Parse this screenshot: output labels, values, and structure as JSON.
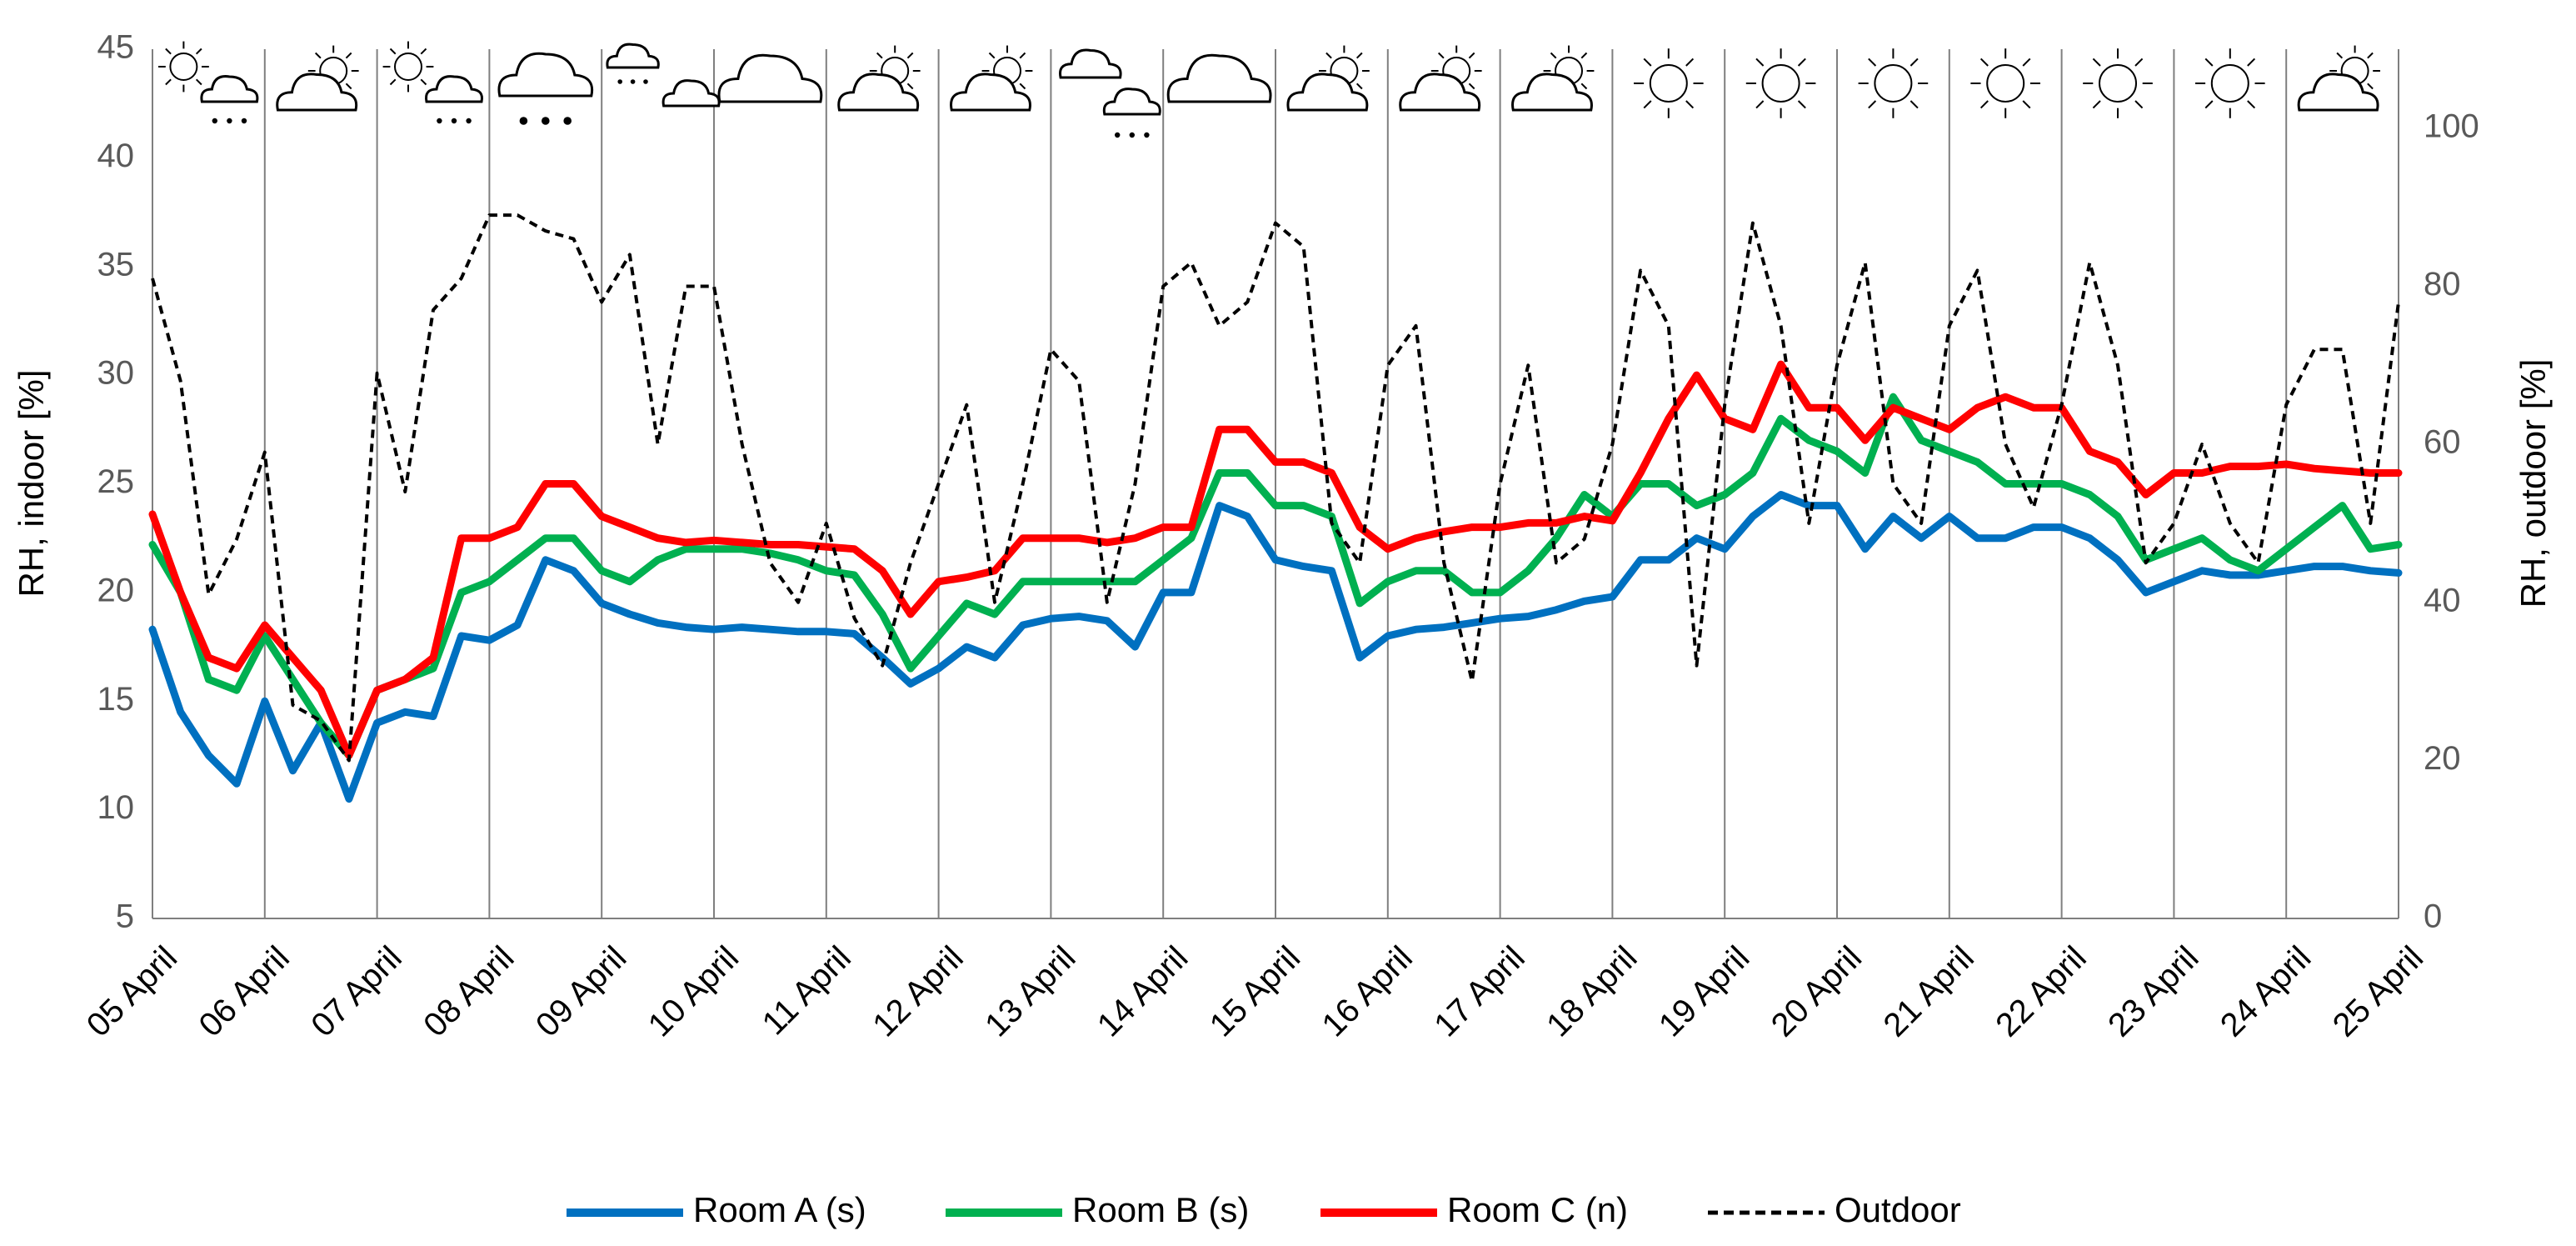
{
  "chart_data": {
    "type": "line",
    "y_label": "RH, indoor [%]",
    "y2_label": "RH, outdoor [%]",
    "categories": [
      "05 April",
      null,
      null,
      null,
      "06 April",
      null,
      null,
      null,
      "07 April",
      null,
      null,
      null,
      "08 April",
      null,
      null,
      null,
      "09 April",
      null,
      null,
      null,
      "10 April",
      null,
      null,
      null,
      "11 April",
      null,
      null,
      null,
      "12 April",
      null,
      null,
      null,
      "13 April",
      null,
      null,
      null,
      "14 April",
      null,
      null,
      null,
      "15 April",
      null,
      null,
      null,
      "16 April",
      null,
      null,
      null,
      "17 April",
      null,
      null,
      null,
      "18 April",
      null,
      null,
      null,
      "19 April",
      null,
      null,
      null,
      "20 April",
      null,
      null,
      null,
      "21 April",
      null,
      null,
      null,
      "22 April",
      null,
      null,
      null,
      "23 April",
      null,
      null,
      null,
      "24 April",
      null,
      null,
      null,
      "25 April"
    ],
    "ylim": [
      5,
      45
    ],
    "yticks": [
      5,
      10,
      15,
      20,
      25,
      30,
      35,
      40,
      45
    ],
    "y2lim": [
      0,
      110
    ],
    "y2ticks": [
      0,
      20,
      40,
      60,
      80,
      100
    ],
    "vertical_grid": true,
    "legend": "bottom",
    "series": [
      {
        "name": "Room A (s)",
        "color": "#0070c0",
        "values": [
          18.3,
          14.5,
          12.5,
          11.2,
          15.0,
          11.8,
          14.0,
          10.5,
          14.0,
          14.5,
          14.3,
          18.0,
          17.8,
          18.5,
          21.5,
          21.0,
          19.5,
          19.0,
          18.6,
          18.4,
          18.3,
          18.4,
          18.3,
          18.2,
          18.2,
          18.1,
          17.0,
          15.8,
          16.5,
          17.5,
          17.0,
          18.5,
          18.8,
          18.9,
          18.7,
          17.5,
          20.0,
          20.0,
          24.0,
          23.5,
          21.5,
          21.2,
          21.0,
          17.0,
          18.0,
          18.3,
          18.4,
          18.6,
          18.8,
          18.9,
          19.2,
          19.6,
          19.8,
          21.5,
          21.5,
          22.5,
          22.0,
          23.5,
          24.5,
          24.0,
          24.0,
          22.0,
          23.5,
          22.5,
          23.5,
          22.5,
          22.5,
          23.0,
          23.0,
          22.5,
          21.5,
          20.0,
          20.5,
          21.0,
          20.8,
          20.8,
          21.0,
          21.2,
          21.2,
          21.0,
          20.9
        ]
      },
      {
        "name": "Room B (s)",
        "color": "#00b050",
        "values": [
          22.2,
          20.0,
          16.0,
          15.5,
          18.0,
          16.0,
          14.0,
          12.5,
          15.5,
          16.0,
          16.5,
          20.0,
          20.5,
          21.5,
          22.5,
          22.5,
          21.0,
          20.5,
          21.5,
          22.0,
          22.0,
          22.0,
          21.8,
          21.5,
          21.0,
          20.8,
          19.0,
          16.5,
          18.0,
          19.5,
          19.0,
          20.5,
          20.5,
          20.5,
          20.5,
          20.5,
          21.5,
          22.5,
          25.5,
          25.5,
          24.0,
          24.0,
          23.5,
          19.5,
          20.5,
          21.0,
          21.0,
          20.0,
          20.0,
          21.0,
          22.5,
          24.5,
          23.5,
          25.0,
          25.0,
          24.0,
          24.5,
          25.5,
          28.0,
          27.0,
          26.5,
          25.5,
          29.0,
          27.0,
          26.5,
          26.0,
          25.0,
          25.0,
          25.0,
          24.5,
          23.5,
          21.5,
          22.0,
          22.5,
          21.5,
          21.0,
          22.0,
          23.0,
          24.0,
          22.0,
          22.2
        ]
      },
      {
        "name": "Room C (n)",
        "color": "#ff0000",
        "values": [
          23.6,
          20.0,
          17.0,
          16.5,
          18.5,
          17.0,
          15.5,
          12.5,
          15.5,
          16.0,
          17.0,
          22.5,
          22.5,
          23.0,
          25.0,
          25.0,
          23.5,
          23.0,
          22.5,
          22.3,
          22.4,
          22.3,
          22.2,
          22.2,
          22.1,
          22.0,
          21.0,
          19.0,
          20.5,
          20.7,
          21.0,
          22.5,
          22.5,
          22.5,
          22.3,
          22.5,
          23.0,
          23.0,
          27.5,
          27.5,
          26.0,
          26.0,
          25.5,
          23.0,
          22.0,
          22.5,
          22.8,
          23.0,
          23.0,
          23.2,
          23.2,
          23.5,
          23.3,
          25.5,
          28.0,
          30.0,
          28.0,
          27.5,
          30.5,
          28.5,
          28.5,
          27.0,
          28.5,
          28.0,
          27.5,
          28.5,
          29.0,
          28.5,
          28.5,
          26.5,
          26.0,
          24.5,
          25.5,
          25.5,
          25.8,
          25.8,
          25.9,
          25.7,
          25.6,
          25.5,
          25.5
        ]
      },
      {
        "name": "Outdoor",
        "color": "#000000",
        "dashed": true,
        "axis": "y2",
        "values": [
          81,
          68,
          41,
          48,
          59,
          27,
          25,
          20,
          69,
          54,
          77,
          81,
          89,
          89,
          87,
          86,
          78,
          84,
          60,
          80,
          80,
          60,
          45,
          40,
          50,
          38,
          32,
          45,
          55,
          65,
          40,
          55,
          72,
          68,
          40,
          55,
          80,
          83,
          75,
          78,
          88,
          85,
          50,
          45,
          70,
          75,
          45,
          30,
          55,
          70,
          45,
          48,
          60,
          82,
          75,
          32,
          65,
          88,
          75,
          50,
          70,
          83,
          55,
          50,
          75,
          82,
          60,
          52,
          65,
          83,
          70,
          45,
          50,
          60,
          50,
          45,
          65,
          72,
          72,
          50,
          78
        ]
      }
    ]
  }
}
